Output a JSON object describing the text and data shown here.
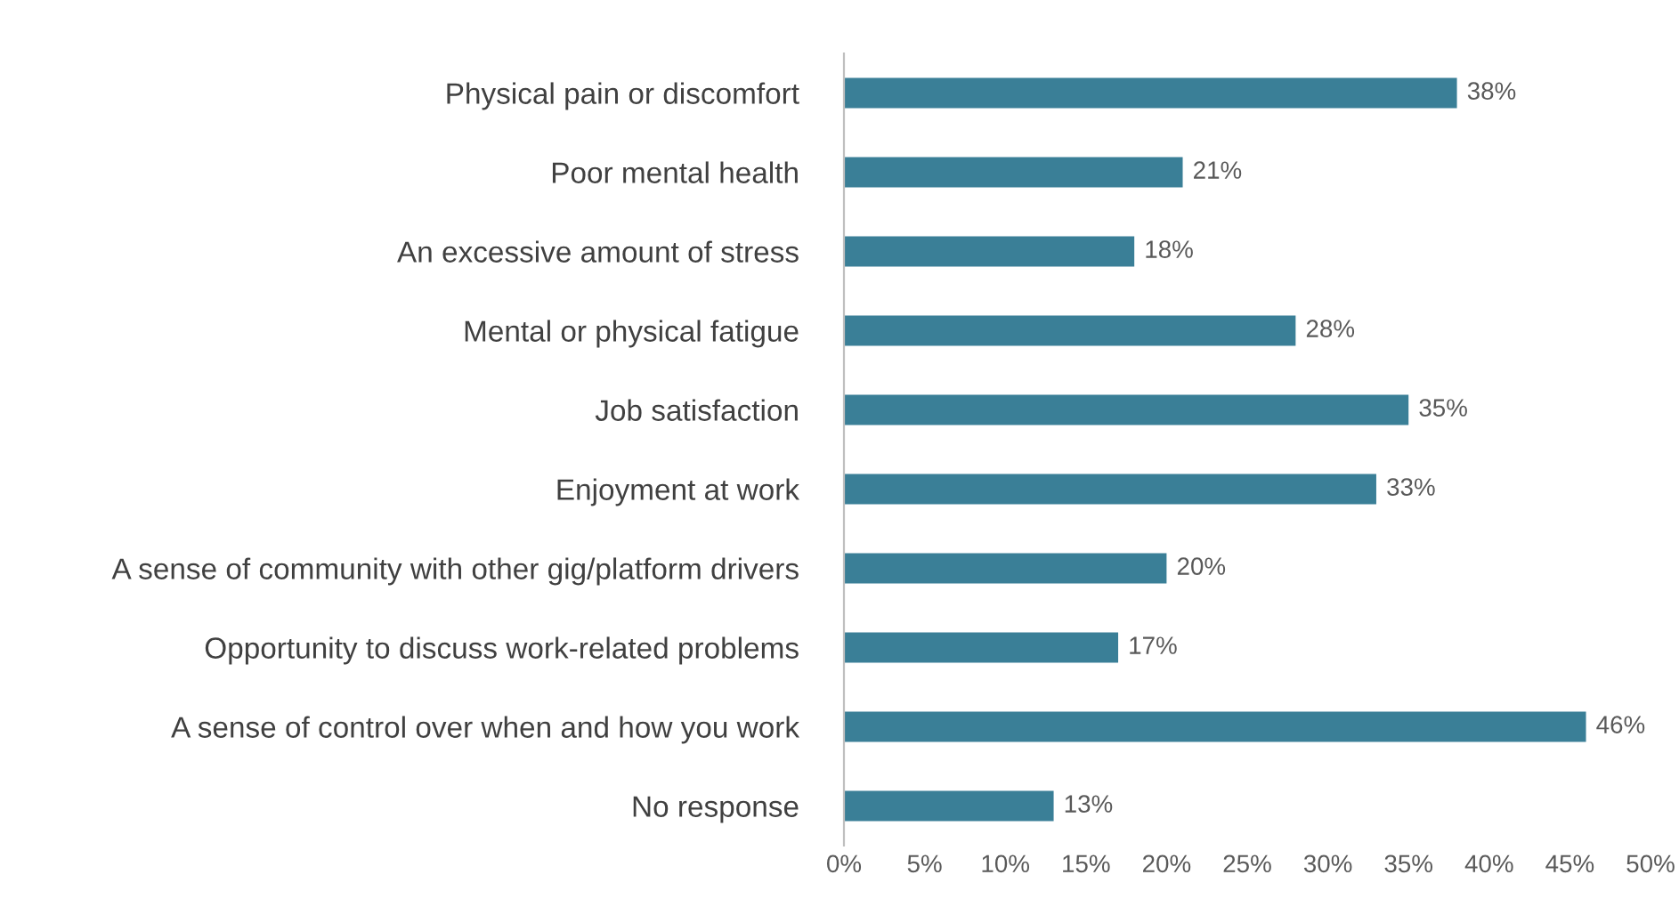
{
  "chart_data": {
    "type": "bar",
    "orientation": "horizontal",
    "categories": [
      "Physical pain or discomfort",
      "Poor mental health",
      "An excessive amount of stress",
      "Mental or physical fatigue",
      "Job satisfaction",
      "Enjoyment at work",
      "A sense of community with other gig/platform drivers",
      "Opportunity to discuss work-related problems",
      "A sense of control over when and how you work",
      "No response"
    ],
    "values": [
      38,
      21,
      18,
      28,
      35,
      33,
      20,
      17,
      46,
      13
    ],
    "value_labels": [
      "38%",
      "21%",
      "18%",
      "28%",
      "35%",
      "33%",
      "20%",
      "17%",
      "46%",
      "13%"
    ],
    "color": "#3a7f97",
    "xlim": [
      0,
      50
    ],
    "xticks": [
      {
        "value": 0,
        "label": "0%"
      },
      {
        "value": 5,
        "label": "5%"
      },
      {
        "value": 10,
        "label": "10%"
      },
      {
        "value": 15,
        "label": "15%"
      },
      {
        "value": 20,
        "label": "20%"
      },
      {
        "value": 25,
        "label": "25%"
      },
      {
        "value": 30,
        "label": "30%"
      },
      {
        "value": 35,
        "label": "35%"
      },
      {
        "value": 40,
        "label": "40%"
      },
      {
        "value": 45,
        "label": "45%"
      },
      {
        "value": 50,
        "label": "50%"
      }
    ],
    "grid": false,
    "legend": false
  }
}
